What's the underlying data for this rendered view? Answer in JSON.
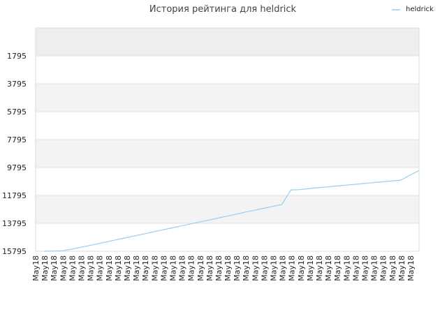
{
  "chart_data": {
    "type": "line",
    "title": "История рейтинга для heldrick",
    "xlabel": "",
    "ylabel": "",
    "legend": "top-right",
    "grid": true,
    "y_inverted": true,
    "ylim": [
      -205,
      15795
    ],
    "yticks": [
      1795,
      3795,
      5795,
      7795,
      9795,
      11795,
      13795,
      15795
    ],
    "categories": [
      "May18",
      "May18",
      "May18",
      "May18",
      "May18",
      "May18",
      "May18",
      "May18",
      "May18",
      "May18",
      "May18",
      "May18",
      "May18",
      "May18",
      "May18",
      "May18",
      "May18",
      "May18",
      "May18",
      "May18",
      "May18",
      "May18",
      "May18",
      "May18",
      "May18",
      "May18",
      "May18",
      "May18",
      "May18",
      "May18",
      "May18",
      "May18",
      "May18",
      "May18",
      "May18",
      "May18",
      "May18",
      "May18",
      "May18",
      "May18",
      "May18",
      "May18"
    ],
    "series": [
      {
        "name": "heldrick",
        "color": "#99ccee",
        "values": [
          15795,
          15780,
          15760,
          15650,
          15510,
          15380,
          15240,
          15100,
          14960,
          14820,
          14680,
          14540,
          14400,
          14260,
          14120,
          13980,
          13840,
          13700,
          13560,
          13420,
          13280,
          13140,
          13000,
          12860,
          12720,
          12580,
          12450,
          11400,
          11380,
          11300,
          11240,
          11180,
          11120,
          11060,
          11000,
          10940,
          10880,
          10820,
          10760,
          10700,
          10350,
          10000
        ]
      }
    ]
  }
}
